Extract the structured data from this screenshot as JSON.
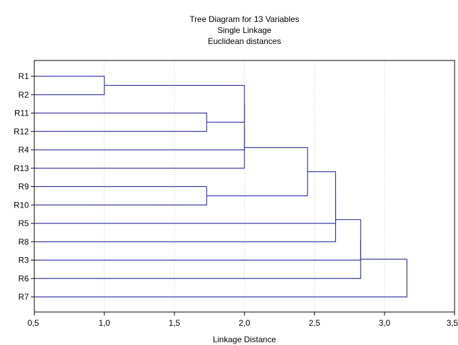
{
  "chart_data": {
    "type": "dendrogram",
    "title_lines": [
      "Tree Diagram for 13  Variables",
      "Single Linkage",
      "Euclidean distances"
    ],
    "xlabel": "Linkage Distance",
    "xlim": [
      0.5,
      3.5
    ],
    "xticks": [
      {
        "value": 0.5,
        "label": "0,5"
      },
      {
        "value": 1.0,
        "label": "1,0"
      },
      {
        "value": 1.5,
        "label": "1,5"
      },
      {
        "value": 2.0,
        "label": "2,0"
      },
      {
        "value": 2.5,
        "label": "2,5"
      },
      {
        "value": 3.0,
        "label": "3,0"
      },
      {
        "value": 3.5,
        "label": "3,5"
      }
    ],
    "grid": "vertical dotted",
    "leaves": [
      "R1",
      "R2",
      "R11",
      "R12",
      "R4",
      "R13",
      "R9",
      "R10",
      "R5",
      "R8",
      "R3",
      "R6",
      "R7"
    ],
    "merges": [
      {
        "id": "m1",
        "a": "R1",
        "b": "R2",
        "height": 1.0
      },
      {
        "id": "m2",
        "a": "R11",
        "b": "R12",
        "height": 1.73
      },
      {
        "id": "m3",
        "a": "R9",
        "b": "R10",
        "height": 1.73
      },
      {
        "id": "m4",
        "a": "m1",
        "b": "m2",
        "height": 2.0
      },
      {
        "id": "m5",
        "a": "m4",
        "b": "R4",
        "height": 2.0
      },
      {
        "id": "m6",
        "a": "m5",
        "b": "R13",
        "height": 2.0
      },
      {
        "id": "m7",
        "a": "m6",
        "b": "m3",
        "height": 2.45
      },
      {
        "id": "m8",
        "a": "m7",
        "b": "R5",
        "height": 2.65
      },
      {
        "id": "m9",
        "a": "m8",
        "b": "R8",
        "height": 2.65
      },
      {
        "id": "m10",
        "a": "m9",
        "b": "R3",
        "height": 2.83
      },
      {
        "id": "m11",
        "a": "m10",
        "b": "R6",
        "height": 2.83
      },
      {
        "id": "m12",
        "a": "m11",
        "b": "R7",
        "height": 3.16
      }
    ],
    "colors": {
      "link": "#3a3aa0",
      "grid": "#c8c8c8",
      "frame": "#000000",
      "text": "#000000"
    }
  }
}
